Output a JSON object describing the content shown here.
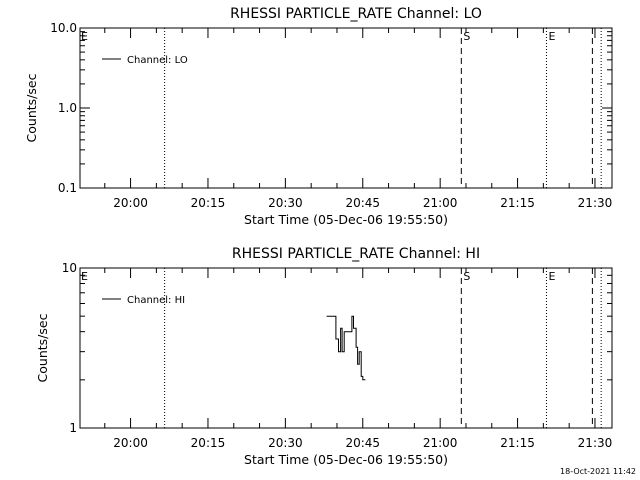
{
  "footer": {
    "timestamp": "18-Oct-2021 11:42"
  },
  "chart_data": [
    {
      "type": "line",
      "title": "RHESSI PARTICLE_RATE Channel: LO",
      "xlabel": "Start Time (05-Dec-06 19:55:50)",
      "ylabel": "Counts/sec",
      "x_range_minutes": [
        19.3,
        99.3
      ],
      "x_ticks": [
        "20:00",
        "20:15",
        "20:30",
        "20:45",
        "21:00",
        "21:15",
        "21:30"
      ],
      "x_tick_minutes": [
        24,
        39,
        54,
        69,
        84,
        99,
        114
      ],
      "y_scale": "log",
      "ylim": [
        0.1,
        10.0
      ],
      "y_ticks": [
        "0.1",
        "1.0",
        "10.0"
      ],
      "y_tick_values": [
        0.1,
        1.0,
        10.0
      ],
      "legend": {
        "placement": "top-left",
        "entries": [
          "Channel: LO"
        ]
      },
      "series": [
        {
          "name": "Channel: LO",
          "x": [],
          "y": []
        }
      ],
      "markers": [
        {
          "minute": 30.6,
          "style": "dotted",
          "label": ""
        },
        {
          "minute": 88.1,
          "style": "dashed",
          "label": "S"
        },
        {
          "minute": 104.6,
          "style": "dotted",
          "label": "E"
        },
        {
          "minute": 113.5,
          "style": "dashed",
          "label": ""
        },
        {
          "minute": 115.2,
          "style": "dotted",
          "label": ""
        }
      ],
      "edge_label": "E"
    },
    {
      "type": "line",
      "title": "RHESSI PARTICLE_RATE Channel: HI",
      "xlabel": "Start Time (05-Dec-06 19:55:50)",
      "ylabel": "Counts/sec",
      "x_range_minutes": [
        19.3,
        99.3
      ],
      "x_ticks": [
        "20:00",
        "20:15",
        "20:30",
        "20:45",
        "21:00",
        "21:15",
        "21:30"
      ],
      "x_tick_minutes": [
        24,
        39,
        54,
        69,
        84,
        99,
        114
      ],
      "y_scale": "log",
      "ylim": [
        1,
        10
      ],
      "y_ticks": [
        "1",
        "10"
      ],
      "y_tick_values": [
        1,
        10
      ],
      "legend": {
        "placement": "top-left",
        "entries": [
          "Channel: HI"
        ]
      },
      "series": [
        {
          "name": "Channel: HI",
          "x": [
            62.0,
            63.8,
            63.8,
            64.3,
            64.3,
            64.7,
            64.7,
            65.0,
            65.0,
            65.4,
            65.4,
            66.9,
            66.9,
            67.2,
            67.2,
            67.7,
            67.7,
            68.0,
            68.0,
            68.3,
            68.3,
            68.7,
            68.7,
            69.0,
            69.0,
            69.5
          ],
          "y": [
            5.0,
            5.0,
            3.6,
            3.6,
            3.0,
            3.0,
            4.2,
            4.2,
            3.0,
            3.0,
            4.0,
            4.0,
            5.0,
            5.0,
            4.2,
            4.2,
            3.2,
            3.2,
            2.5,
            2.5,
            3.0,
            3.0,
            2.1,
            2.1,
            2.0,
            2.0
          ]
        }
      ],
      "markers": [
        {
          "minute": 30.6,
          "style": "dotted",
          "label": ""
        },
        {
          "minute": 88.1,
          "style": "dashed",
          "label": "S"
        },
        {
          "minute": 104.6,
          "style": "dotted",
          "label": "E"
        },
        {
          "minute": 113.5,
          "style": "dashed",
          "label": ""
        },
        {
          "minute": 115.2,
          "style": "dotted",
          "label": ""
        }
      ],
      "edge_label": "E"
    }
  ]
}
